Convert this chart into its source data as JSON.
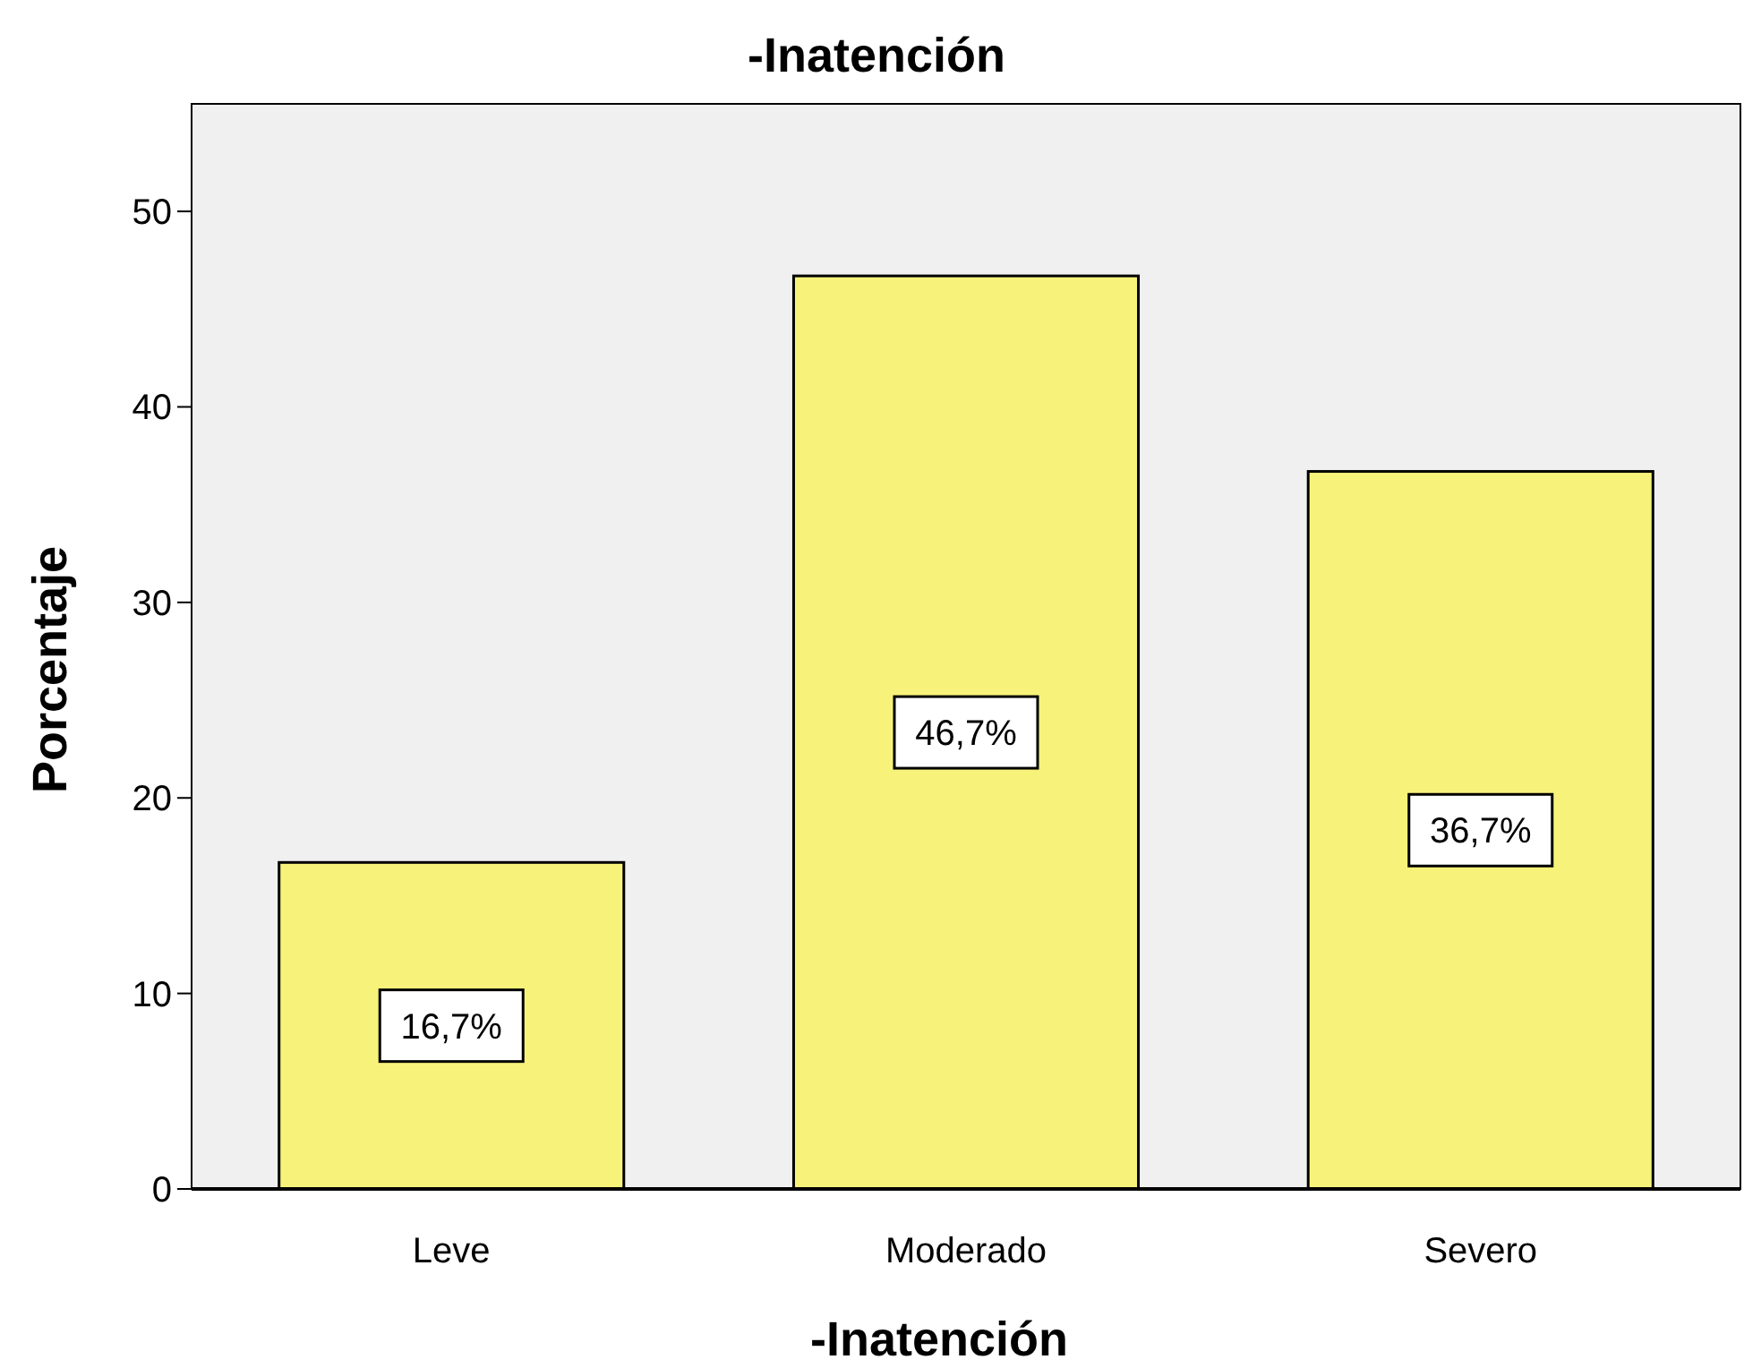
{
  "chart_data": {
    "type": "bar",
    "title": "-Inatención",
    "xlabel": "-Inatención",
    "ylabel": "Porcentaje",
    "categories": [
      "Leve",
      "Moderado",
      "Severo"
    ],
    "values": [
      16.7,
      46.7,
      36.7
    ],
    "value_labels": [
      "16,7%",
      "46,7%",
      "36,7%"
    ],
    "color": "#f7f37a",
    "ylim": [
      0,
      55.5
    ],
    "yticks": [
      0,
      10,
      20,
      30,
      40,
      50
    ],
    "grid": false
  }
}
